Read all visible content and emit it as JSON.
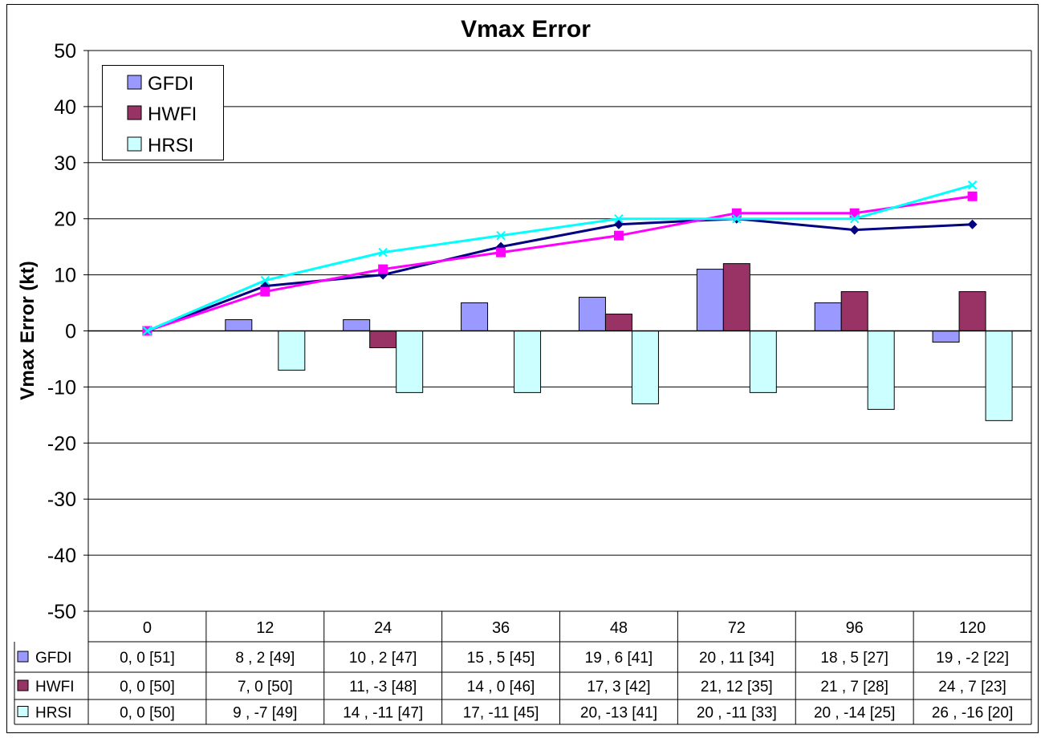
{
  "chart_data": {
    "type": "bar",
    "title": "Vmax Error",
    "ylabel": "Vmax Error (kt)",
    "xlabel": "",
    "ylim": [
      -50,
      50
    ],
    "yticks": [
      50,
      40,
      30,
      20,
      10,
      0,
      -10,
      -20,
      -30,
      -40,
      -50
    ],
    "categories": [
      "0",
      "12",
      "24",
      "36",
      "48",
      "72",
      "96",
      "120"
    ],
    "grid": true,
    "legend_position": "top-left",
    "series": [
      {
        "name": "GFDI",
        "color": "#9999ff",
        "values": [
          0,
          2,
          2,
          5,
          6,
          11,
          5,
          -2
        ]
      },
      {
        "name": "HWFI",
        "color": "#993366",
        "values": [
          0,
          0,
          -3,
          0,
          3,
          12,
          7,
          7
        ]
      },
      {
        "name": "HRSI",
        "color": "#ccffff",
        "values": [
          0,
          -7,
          -11,
          -11,
          -13,
          -11,
          -14,
          -16
        ]
      }
    ],
    "lines": [
      {
        "color": "#000080",
        "marker": "diamond",
        "values": [
          0,
          8,
          10,
          15,
          19,
          20,
          18,
          19
        ]
      },
      {
        "color": "#ff00ff",
        "marker": "square",
        "values": [
          0,
          7,
          11,
          14,
          17,
          21,
          21,
          24
        ]
      },
      {
        "color": "#00ffff",
        "marker": "x",
        "values": [
          0,
          9,
          14,
          17,
          20,
          20,
          20,
          26
        ]
      }
    ],
    "table": {
      "rows": [
        {
          "name": "GFDI",
          "cells": [
            "0, 0 [51]",
            "8 , 2 [49]",
            "10 , 2 [47]",
            "15 , 5 [45]",
            "19 , 6 [41]",
            "20 , 11 [34]",
            "18 , 5 [27]",
            "19 , -2 [22]"
          ]
        },
        {
          "name": "HWFI",
          "cells": [
            "0, 0 [50]",
            "7, 0 [50]",
            "11, -3 [48]",
            "14 , 0 [46]",
            "17, 3 [42]",
            "21, 12 [35]",
            "21 , 7 [28]",
            "24 , 7 [23]"
          ]
        },
        {
          "name": "HRSI",
          "cells": [
            "0, 0 [50]",
            "9 , -7 [49]",
            "14 , -11 [47]",
            "17, -11 [45]",
            "20, -13 [41]",
            "20 , -11 [33]",
            "20 , -14 [25]",
            "26 , -16 [20]"
          ]
        }
      ]
    }
  }
}
